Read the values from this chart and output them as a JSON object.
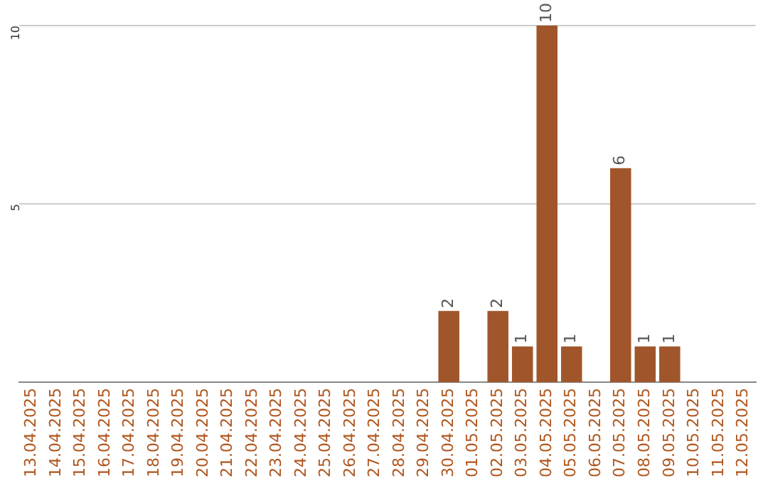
{
  "chart_data": {
    "type": "bar",
    "categories": [
      "13.04.2025",
      "14.04.2025",
      "15.04.2025",
      "16.04.2025",
      "17.04.2025",
      "18.04.2025",
      "19.04.2025",
      "20.04.2025",
      "21.04.2025",
      "22.04.2025",
      "23.04.2025",
      "24.04.2025",
      "25.04.2025",
      "26.04.2025",
      "27.04.2025",
      "28.04.2025",
      "29.04.2025",
      "30.04.2025",
      "01.05.2025",
      "02.05.2025",
      "03.05.2025",
      "04.05.2025",
      "05.05.2025",
      "06.05.2025",
      "07.05.2025",
      "08.05.2025",
      "09.05.2025",
      "10.05.2025",
      "11.05.2025",
      "12.05.2025"
    ],
    "values": [
      0,
      0,
      0,
      0,
      0,
      0,
      0,
      0,
      0,
      0,
      0,
      0,
      0,
      0,
      0,
      0,
      0,
      2,
      0,
      2,
      1,
      10,
      1,
      0,
      6,
      1,
      1,
      0,
      0,
      0
    ],
    "value_labels": [
      null,
      null,
      null,
      null,
      null,
      null,
      null,
      null,
      null,
      null,
      null,
      null,
      null,
      null,
      null,
      null,
      null,
      "2",
      null,
      "2",
      "1",
      "10",
      "1",
      null,
      "6",
      "1",
      "1",
      null,
      null,
      null
    ],
    "color": "#a0562a",
    "ylim": [
      0,
      10
    ],
    "yticks": [
      5,
      10
    ],
    "grid": "y",
    "legend": false
  }
}
